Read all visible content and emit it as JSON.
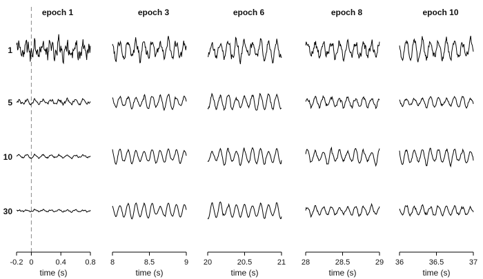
{
  "chart_data": {
    "type": "line",
    "rows": [
      "1",
      "5",
      "10",
      "30"
    ],
    "xlabel": "time (s)",
    "panels": [
      {
        "title": "epoch 1",
        "xlim": [
          -0.2,
          0.8
        ],
        "ticks": [
          "-0.2",
          "0",
          "0.4",
          "0.8"
        ],
        "tick_values": [
          -0.2,
          0,
          0.4,
          0.8
        ],
        "onset": 0
      },
      {
        "title": "epoch 3",
        "xlim": [
          8,
          9
        ],
        "ticks": [
          "8",
          "8.5",
          "9"
        ],
        "tick_values": [
          8,
          8.5,
          9
        ]
      },
      {
        "title": "epoch 6",
        "xlim": [
          20,
          21
        ],
        "ticks": [
          "20",
          "20.5",
          "21"
        ],
        "tick_values": [
          20,
          20.5,
          21
        ]
      },
      {
        "title": "epoch 8",
        "xlim": [
          28,
          29
        ],
        "ticks": [
          "28",
          "28.5",
          "29"
        ],
        "tick_values": [
          28,
          28.5,
          29
        ]
      },
      {
        "title": "epoch 10",
        "xlim": [
          36,
          37
        ],
        "ticks": [
          "36",
          "36.5",
          "37"
        ],
        "tick_values": [
          36,
          36.5,
          37
        ]
      }
    ],
    "amplitude": [
      [
        1.0,
        0.3,
        0.18,
        0.12
      ],
      [
        0.95,
        0.62,
        0.62,
        0.62
      ],
      [
        1.0,
        0.7,
        0.7,
        0.68
      ],
      [
        0.85,
        0.48,
        0.72,
        0.52
      ],
      [
        1.0,
        0.5,
        0.72,
        0.48
      ]
    ],
    "noise": [
      [
        0.75,
        0.45,
        0.4,
        0.45
      ],
      [
        0.45,
        0.15,
        0.1,
        0.05
      ],
      [
        0.35,
        0.2,
        0.1,
        0.05
      ],
      [
        0.4,
        0.3,
        0.15,
        0.2
      ],
      [
        0.3,
        0.2,
        0.15,
        0.25
      ]
    ],
    "cycles": 9
  }
}
